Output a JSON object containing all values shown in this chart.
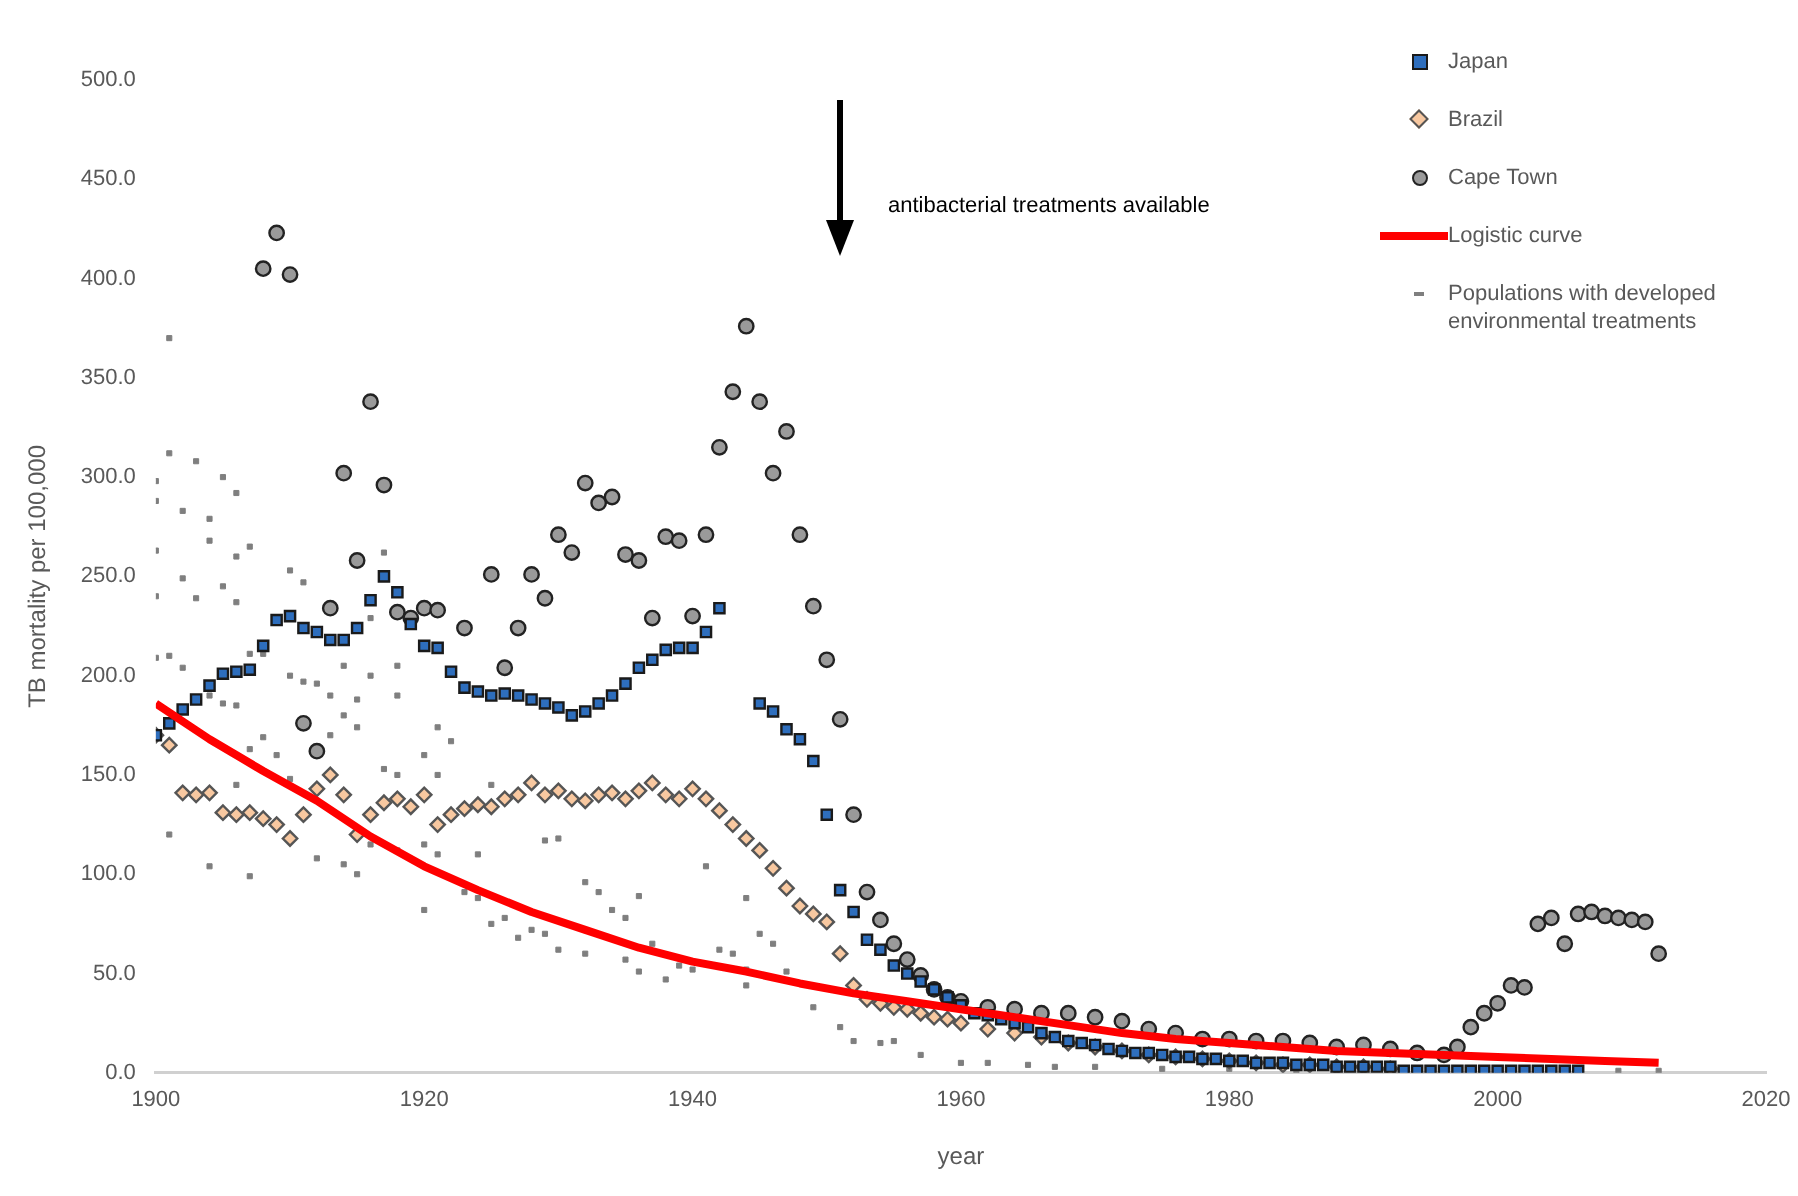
{
  "chart_data": {
    "type": "scatter",
    "xlabel": "year",
    "ylabel": "TB mortality per 100,000",
    "xlim": [
      1900,
      2020
    ],
    "xticks": [
      1900,
      1920,
      1940,
      1960,
      1980,
      2000,
      2020
    ],
    "ylim": [
      0,
      500
    ],
    "yticks": [
      {
        "value": 0,
        "label": "0.0"
      },
      {
        "value": 50,
        "label": "50.0"
      },
      {
        "value": 100,
        "label": "100.0"
      },
      {
        "value": 150,
        "label": "150.0"
      },
      {
        "value": 200,
        "label": "200.0"
      },
      {
        "value": 250,
        "label": "250.0"
      },
      {
        "value": 300,
        "label": "300.0"
      },
      {
        "value": 350,
        "label": "350.0"
      },
      {
        "value": 400,
        "label": "400.0"
      },
      {
        "value": 450,
        "label": "450.0"
      },
      {
        "value": 500,
        "label": "500.0"
      }
    ],
    "grid": false,
    "legend": "top right",
    "annotations": [
      "antibacterial treatments available"
    ],
    "series": [
      {
        "name": "Japan",
        "type": "scatter",
        "marker": "square",
        "color": "#2e6ebd",
        "x": [
          1900,
          1901,
          1902,
          1903,
          1904,
          1905,
          1906,
          1907,
          1908,
          1909,
          1910,
          1911,
          1912,
          1913,
          1914,
          1915,
          1916,
          1917,
          1918,
          1919,
          1920,
          1921,
          1922,
          1923,
          1924,
          1925,
          1926,
          1927,
          1928,
          1929,
          1930,
          1931,
          1932,
          1933,
          1934,
          1935,
          1936,
          1937,
          1938,
          1939,
          1940,
          1941,
          1942,
          1945,
          1946,
          1947,
          1948,
          1949,
          1950,
          1951,
          1952,
          1953,
          1954,
          1955,
          1956,
          1957,
          1958,
          1959,
          1960,
          1961,
          1962,
          1963,
          1964,
          1965,
          1966,
          1967,
          1968,
          1969,
          1970,
          1971,
          1972,
          1973,
          1974,
          1975,
          1976,
          1977,
          1978,
          1979,
          1980,
          1981,
          1982,
          1983,
          1984,
          1985,
          1986,
          1987,
          1988,
          1989,
          1990,
          1991,
          1992,
          1993,
          1994,
          1995,
          1996,
          1997,
          1998,
          1999,
          2000,
          2001,
          2002,
          2003,
          2004,
          2005,
          2006
        ],
        "values": [
          170,
          176,
          183,
          188,
          195,
          201,
          202,
          203,
          215,
          228,
          230,
          224,
          222,
          218,
          218,
          224,
          238,
          250,
          242,
          226,
          215,
          214,
          202,
          194,
          192,
          190,
          191,
          190,
          188,
          186,
          184,
          180,
          182,
          186,
          190,
          196,
          204,
          208,
          213,
          214,
          214,
          222,
          234,
          186,
          182,
          173,
          168,
          157,
          130,
          92,
          81,
          67,
          62,
          54,
          50,
          46,
          42,
          38,
          34,
          30,
          29,
          27,
          25,
          23,
          20,
          18,
          16,
          15,
          14,
          12,
          11,
          10,
          10,
          9,
          8,
          8,
          7,
          7,
          6,
          6,
          5,
          5,
          5,
          4,
          4,
          4,
          3,
          3,
          3,
          3,
          3,
          1,
          1,
          1,
          1,
          1,
          1,
          1,
          1,
          1,
          1,
          1,
          1,
          1,
          1
        ]
      },
      {
        "name": "Brazil",
        "type": "scatter",
        "marker": "diamond",
        "color": "#f8c8a0",
        "x": [
          1900,
          1901,
          1902,
          1903,
          1904,
          1905,
          1906,
          1907,
          1908,
          1909,
          1910,
          1911,
          1912,
          1913,
          1914,
          1915,
          1916,
          1917,
          1918,
          1919,
          1920,
          1921,
          1922,
          1923,
          1924,
          1925,
          1926,
          1927,
          1928,
          1929,
          1930,
          1931,
          1932,
          1933,
          1934,
          1935,
          1936,
          1937,
          1938,
          1939,
          1940,
          1941,
          1942,
          1943,
          1944,
          1945,
          1946,
          1947,
          1948,
          1949,
          1950,
          1951,
          1952,
          1953,
          1954,
          1955,
          1956,
          1957,
          1958,
          1959,
          1960,
          1962,
          1964,
          1966,
          1968,
          1970,
          1972,
          1974,
          1976,
          1978,
          1980,
          1982,
          1984,
          1986,
          1988,
          1990,
          1992
        ],
        "values": [
          170,
          165,
          141,
          140,
          141,
          131,
          130,
          131,
          128,
          125,
          118,
          130,
          143,
          150,
          140,
          120,
          130,
          136,
          138,
          134,
          140,
          125,
          130,
          133,
          135,
          134,
          138,
          140,
          146,
          140,
          142,
          138,
          137,
          140,
          141,
          138,
          142,
          146,
          140,
          138,
          143,
          138,
          132,
          125,
          118,
          112,
          103,
          93,
          84,
          80,
          76,
          60,
          44,
          37,
          35,
          33,
          32,
          30,
          28,
          27,
          25,
          22,
          20,
          18,
          15,
          13,
          11,
          9,
          8,
          7,
          6,
          5,
          4,
          4,
          3,
          3,
          2
        ]
      },
      {
        "name": "Cape Town",
        "type": "scatter",
        "marker": "circle",
        "color": "#9a9a9a",
        "x": [
          1908,
          1909,
          1910,
          1911,
          1912,
          1913,
          1914,
          1915,
          1916,
          1917,
          1918,
          1919,
          1920,
          1921,
          1923,
          1925,
          1926,
          1927,
          1928,
          1929,
          1930,
          1931,
          1932,
          1933,
          1934,
          1935,
          1936,
          1937,
          1938,
          1939,
          1940,
          1941,
          1942,
          1943,
          1944,
          1945,
          1946,
          1947,
          1948,
          1949,
          1950,
          1951,
          1952,
          1953,
          1954,
          1955,
          1956,
          1957,
          1958,
          1959,
          1960,
          1962,
          1964,
          1966,
          1968,
          1970,
          1972,
          1974,
          1976,
          1978,
          1980,
          1982,
          1984,
          1986,
          1988,
          1990,
          1992,
          1994,
          1996,
          1997,
          1998,
          1999,
          2000,
          2001,
          2002,
          2003,
          2004,
          2005,
          2006,
          2007,
          2008,
          2009,
          2010,
          2011,
          2012
        ],
        "values": [
          405,
          423,
          402,
          176,
          162,
          234,
          302,
          258,
          338,
          296,
          232,
          229,
          234,
          233,
          224,
          251,
          204,
          224,
          251,
          239,
          271,
          262,
          297,
          287,
          290,
          261,
          258,
          229,
          270,
          268,
          230,
          271,
          315,
          343,
          376,
          338,
          302,
          323,
          271,
          235,
          208,
          178,
          130,
          91,
          77,
          65,
          57,
          49,
          42,
          38,
          36,
          33,
          32,
          30,
          30,
          28,
          26,
          22,
          20,
          17,
          17,
          16,
          16,
          15,
          13,
          14,
          12,
          10,
          9,
          13,
          23,
          30,
          35,
          44,
          43,
          75,
          78,
          65,
          80,
          81,
          79,
          78,
          77,
          76,
          60
        ]
      },
      {
        "name": "Logistic curve",
        "type": "line",
        "marker": "none",
        "color": "#ff0000",
        "x": [
          1900,
          1904,
          1908,
          1912,
          1916,
          1920,
          1924,
          1928,
          1932,
          1936,
          1940,
          1944,
          1948,
          1952,
          1956,
          1960,
          1964,
          1968,
          1972,
          1976,
          1980,
          1984,
          1988,
          1992,
          1996,
          2000,
          2004,
          2008,
          2012
        ],
        "values": [
          186,
          168,
          152,
          137,
          119,
          104,
          92,
          81,
          72,
          63,
          56,
          51,
          45,
          40,
          36,
          32,
          28,
          24,
          20,
          17,
          15,
          13,
          11,
          10,
          9,
          8,
          7,
          6,
          5
        ]
      },
      {
        "name": "Populations with developed environmental treatments",
        "type": "scatter",
        "marker": "square",
        "color": "#7f7f7f",
        "x": [
          1900,
          1901,
          1901,
          1903,
          1905,
          1906,
          1900,
          1902,
          1904,
          1900,
          1904,
          1907,
          1906,
          1902,
          1900,
          1903,
          1905,
          1906,
          1910,
          1911,
          1917,
          1916,
          1900,
          1901,
          1902,
          1904,
          1905,
          1906,
          1907,
          1908,
          1910,
          1911,
          1912,
          1913,
          1914,
          1915,
          1916,
          1918,
          1918,
          1915,
          1913,
          1914,
          1908,
          1907,
          1909,
          1906,
          1917,
          1918,
          1921,
          1920,
          1921,
          1922,
          1925,
          1901,
          1904,
          1907,
          1912,
          1914,
          1915,
          1910,
          1916,
          1918,
          1920,
          1921,
          1924,
          1920,
          1923,
          1924,
          1925,
          1926,
          1927,
          1928,
          1929,
          1930,
          1932,
          1932,
          1933,
          1936,
          1934,
          1935,
          1937,
          1935,
          1936,
          1938,
          1939,
          1940,
          1942,
          1943,
          1944,
          1944,
          1944,
          1941,
          1929,
          1930,
          1945,
          1946,
          1947,
          1949,
          1951,
          1952,
          1954,
          1955,
          1957,
          1960,
          1962,
          1965,
          1967,
          1970,
          1975,
          1980,
          1985,
          1995,
          2000,
          2003,
          2006,
          2009,
          2012
        ],
        "values": [
          298,
          370,
          312,
          308,
          300,
          292,
          288,
          283,
          279,
          263,
          268,
          265,
          260,
          249,
          240,
          239,
          245,
          237,
          253,
          247,
          262,
          229,
          209,
          210,
          204,
          190,
          186,
          185,
          211,
          211,
          200,
          197,
          196,
          190,
          205,
          188,
          200,
          205,
          190,
          174,
          170,
          180,
          169,
          163,
          160,
          145,
          153,
          150,
          150,
          160,
          174,
          167,
          145,
          120,
          104,
          99,
          108,
          105,
          100,
          148,
          115,
          112,
          115,
          110,
          110,
          82,
          91,
          88,
          75,
          78,
          68,
          72,
          70,
          62,
          60,
          96,
          91,
          89,
          82,
          78,
          65,
          57,
          51,
          47,
          54,
          52,
          62,
          60,
          44,
          52,
          88,
          104,
          117,
          118,
          70,
          65,
          51,
          33,
          23,
          16,
          15,
          16,
          9,
          5,
          5,
          4,
          3,
          3,
          2,
          2,
          1,
          1,
          1,
          1,
          1,
          1,
          1
        ]
      }
    ]
  }
}
